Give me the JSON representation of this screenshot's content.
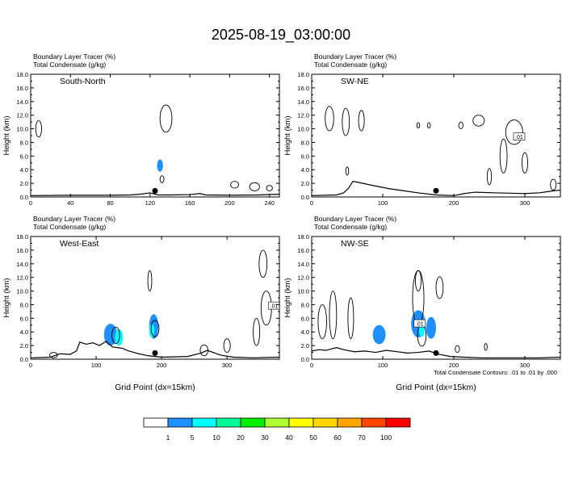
{
  "figure": {
    "title": "2025-08-19_03:00:00",
    "footnote": "Total Condensate Contours: .01 to .01 by .000"
  },
  "colorbar": {
    "colors": [
      "#ffffff",
      "#1e90ff",
      "#00ffff",
      "#00fa9a",
      "#00ee00",
      "#adff2f",
      "#ffff00",
      "#ffd700",
      "#ffa500",
      "#ff4500",
      "#ff0000"
    ],
    "labels": [
      "1",
      "5",
      "10",
      "20",
      "30",
      "40",
      "50",
      "60",
      "70",
      "100"
    ]
  },
  "chart_data": [
    {
      "type": "contour",
      "panel_label": "South-North",
      "header_lines": [
        "Boundary Layer Tracer   (%)",
        "Total Condensate   (g/kg)"
      ],
      "ylabel": "Height (km)",
      "xlabel": "",
      "xlim": [
        0,
        250
      ],
      "ylim": [
        0,
        18
      ],
      "xticks": [
        "0",
        "40",
        "80",
        "120",
        "160",
        "200",
        "240"
      ],
      "yticks": [
        "0.0",
        "2.0",
        "4.0",
        "6.0",
        "8.0",
        "10.0",
        "12.0",
        "14.0",
        "16.0",
        "18.0"
      ],
      "marker_x": 125,
      "tracer_fill_max_percent": 5,
      "contour_labels": []
    },
    {
      "type": "contour",
      "panel_label": "SW-NE",
      "header_lines": [
        "Boundary Layer Tracer   (%)",
        "Total Condensate   (g/kg)"
      ],
      "ylabel": "Height (km)",
      "xlabel": "",
      "xlim": [
        0,
        350
      ],
      "ylim": [
        0,
        18
      ],
      "xticks": [
        "0",
        "100",
        "200",
        "300"
      ],
      "yticks": [
        "0.0",
        "2.0",
        "4.0",
        "6.0",
        "8.0",
        "10.0",
        "12.0",
        "14.0",
        "16.0",
        "18.0"
      ],
      "marker_x": 175,
      "tracer_fill_max_percent": 1,
      "contour_labels": [
        ".01"
      ]
    },
    {
      "type": "contour",
      "panel_label": "West-East",
      "header_lines": [
        "Boundary Layer Tracer   (%)",
        "Total Condensate   (g/kg)"
      ],
      "ylabel": "Height (km)",
      "xlabel": "Grid Point (dx=15km)",
      "xlim": [
        0,
        380
      ],
      "ylim": [
        0,
        18
      ],
      "xticks": [
        "0",
        "100",
        "200",
        "300"
      ],
      "yticks": [
        "0.0",
        "2.0",
        "4.0",
        "6.0",
        "8.0",
        "10.0",
        "12.0",
        "14.0",
        "16.0",
        "18.0"
      ],
      "marker_x": 190,
      "tracer_fill_max_percent": 5,
      "contour_labels": [
        ".01"
      ]
    },
    {
      "type": "contour",
      "panel_label": "NW-SE",
      "header_lines": [
        "Boundary Layer Tracer   (%)",
        "Total Condensate   (g/kg)"
      ],
      "ylabel": "Height (km)",
      "xlabel": "Grid Point (dx=15km)",
      "xlim": [
        0,
        350
      ],
      "ylim": [
        0,
        18
      ],
      "xticks": [
        "0",
        "100",
        "200",
        "300"
      ],
      "yticks": [
        "0.0",
        "2.0",
        "4.0",
        "6.0",
        "8.0",
        "10.0",
        "12.0",
        "14.0",
        "16.0",
        "18.0"
      ],
      "marker_x": 175,
      "tracer_fill_max_percent": 5,
      "contour_labels": [
        ".01"
      ]
    }
  ]
}
